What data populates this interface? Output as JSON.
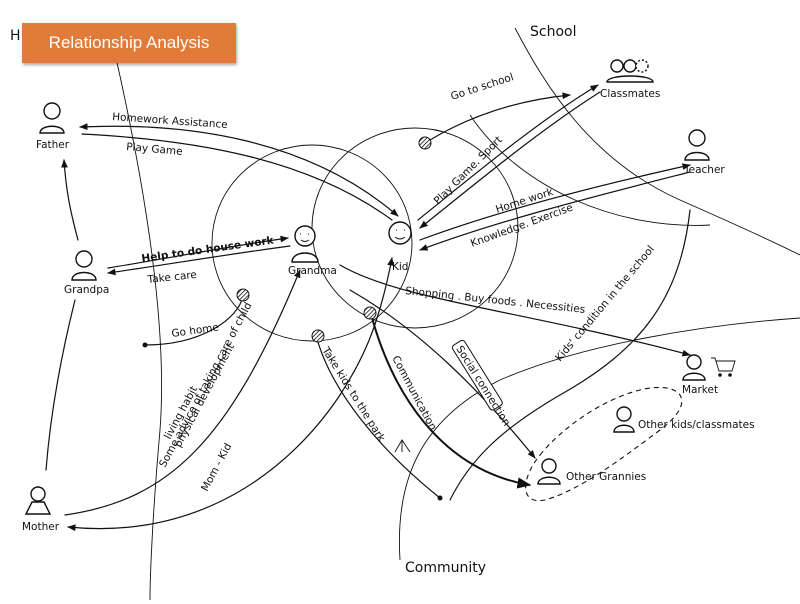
{
  "title": "Relationship Analysis",
  "colors": {
    "banner": "#e07b39",
    "banner_text": "#ffffff",
    "ink": "#111111"
  },
  "areas": {
    "home_partial": "H",
    "school": "School",
    "community": "Community"
  },
  "nodes": {
    "father": "Father",
    "grandpa": "Grandpa",
    "mother": "Mother",
    "grandma": "Grandma",
    "kid": "Kid",
    "classmates": "Classmates",
    "teacher": "Teacher",
    "market": "Market",
    "other_kids": "Other kids/classmates",
    "other_grannies": "Other Grannies"
  },
  "relations": {
    "homework_assistance": "Homework Assistance",
    "play_game": "Play Game",
    "help_housework": "Help to do house work",
    "take_care": "Take care",
    "go_home": "Go home",
    "go_to_school": "Go to school",
    "play_game_sport": "Play Game. Sport",
    "home_work": "Home work",
    "knowledge_exercise": "Knowledge. Exercise",
    "shopping": "Shopping . Buy foods . Necessities",
    "kids_condition": "Kids' condition in the school",
    "communication": "Communication",
    "social_connection": "Social connection",
    "take_kids_park": "Take kids to the park",
    "some_advice": "Some advice of taking care of child",
    "living_habit": "living habit",
    "physical_development": "physical development",
    "mom_kid": "Mom - Kid"
  }
}
